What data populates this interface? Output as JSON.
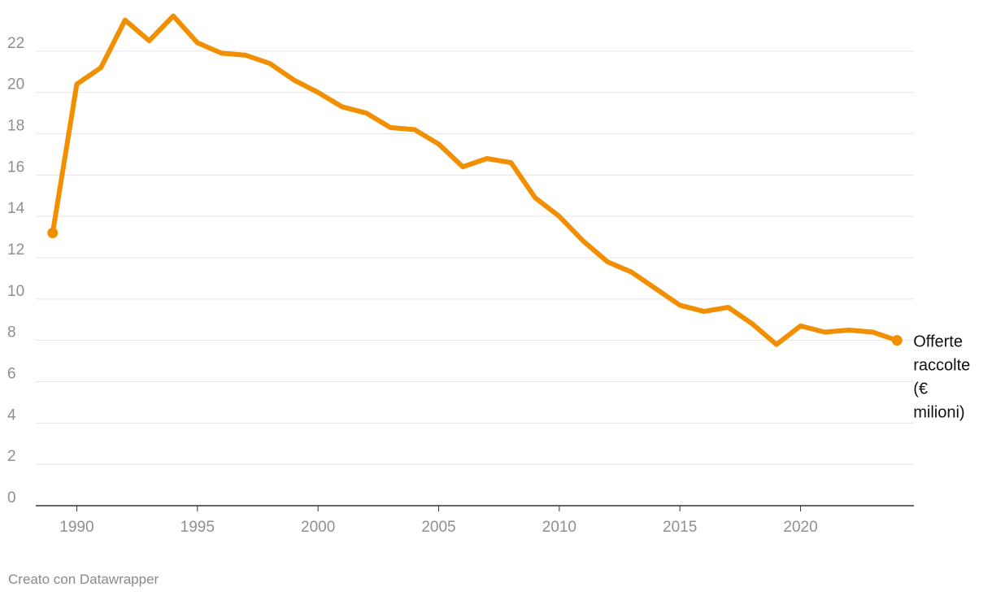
{
  "chart_data": {
    "type": "line",
    "title": "",
    "xlabel": "",
    "ylabel": "",
    "xlim": [
      1988.3,
      2024.7
    ],
    "ylim": [
      0,
      24
    ],
    "x_ticks": [
      1990,
      1995,
      2000,
      2005,
      2010,
      2015,
      2020
    ],
    "y_ticks": [
      0,
      2,
      4,
      6,
      8,
      10,
      12,
      14,
      16,
      18,
      20,
      22
    ],
    "grid": true,
    "legend": "none",
    "series": [
      {
        "name": "Offerte raccolte (€ milioni)",
        "label_lines": [
          "Offerte",
          "raccolte",
          "(€",
          "milioni)"
        ],
        "color": "#f28f00",
        "x": [
          1989,
          1990,
          1991,
          1992,
          1993,
          1994,
          1995,
          1996,
          1997,
          1998,
          1999,
          2000,
          2001,
          2002,
          2003,
          2004,
          2005,
          2006,
          2007,
          2008,
          2009,
          2010,
          2011,
          2012,
          2013,
          2014,
          2015,
          2016,
          2017,
          2018,
          2019,
          2020,
          2021,
          2022,
          2023,
          2024
        ],
        "values": [
          13.2,
          20.4,
          21.2,
          23.5,
          22.5,
          23.7,
          22.4,
          21.9,
          21.8,
          21.4,
          20.6,
          20.0,
          19.3,
          19.0,
          18.3,
          18.2,
          17.5,
          16.4,
          16.8,
          16.6,
          14.9,
          14.0,
          12.8,
          11.8,
          11.3,
          10.5,
          9.7,
          9.4,
          9.6,
          8.8,
          7.8,
          8.7,
          8.4,
          8.5,
          8.4,
          8.0
        ]
      }
    ]
  },
  "footer": {
    "credit": "Creato con Datawrapper"
  }
}
